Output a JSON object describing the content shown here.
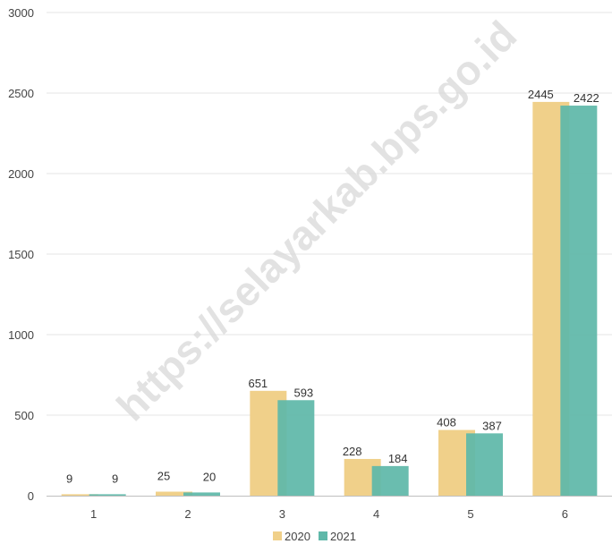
{
  "chart_data": {
    "type": "bar",
    "categories": [
      "1",
      "2",
      "3",
      "4",
      "5",
      "6"
    ],
    "series": [
      {
        "name": "2020",
        "values": [
          9,
          25,
          651,
          228,
          408,
          2445
        ],
        "color": "#f0d08a"
      },
      {
        "name": "2021",
        "values": [
          9,
          20,
          593,
          184,
          387,
          2422
        ],
        "color": "#5fb8a9"
      }
    ],
    "ylim": [
      0,
      3000
    ],
    "yticks": [
      0,
      500,
      1000,
      1500,
      2000,
      2500,
      3000
    ],
    "grid": true,
    "legend_position": "bottom-center"
  },
  "watermark": "https://selayarkab.bps.go.id"
}
